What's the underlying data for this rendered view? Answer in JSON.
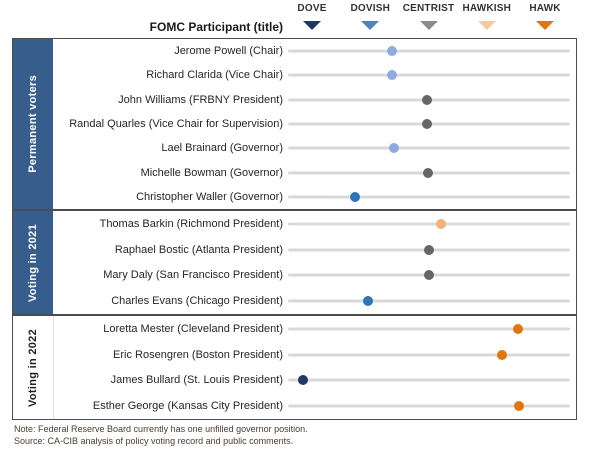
{
  "header": {
    "participant_label": "FOMC Participant (title)",
    "scale": [
      {
        "label": "DOVE",
        "color": "#1F3864"
      },
      {
        "label": "DOVISH",
        "color": "#4F81BD"
      },
      {
        "label": "CENTRIST",
        "color": "#8C8C8C"
      },
      {
        "label": "HAWKISH",
        "color": "#F5C9A2"
      },
      {
        "label": "HAWK",
        "color": "#E2750F"
      }
    ]
  },
  "sections": [
    {
      "label": "Permanent voters",
      "style": "blue",
      "rows": [
        {
          "name": "Jerome Powell (Chair)",
          "value": 2.37,
          "color": "#8FAADC"
        },
        {
          "name": "Richard Clarida (Vice Chair)",
          "value": 2.37,
          "color": "#8FAADC"
        },
        {
          "name": "John Williams (FRBNY President)",
          "value": 2.97,
          "color": "#666666"
        },
        {
          "name": "Randal Quarles (Vice Chair for Supervision)",
          "value": 2.97,
          "color": "#666666"
        },
        {
          "name": "Lael Brainard (Governor)",
          "value": 2.41,
          "color": "#8FAADC"
        },
        {
          "name": "Michelle Bowman (Governor)",
          "value": 2.99,
          "color": "#666666"
        },
        {
          "name": "Christopher Waller (Governor)",
          "value": 1.74,
          "color": "#2E74B5"
        }
      ]
    },
    {
      "label": "Voting in 2021",
      "style": "blue",
      "rows": [
        {
          "name": "Thomas Barkin (Richmond President)",
          "value": 3.21,
          "color": "#F2B279"
        },
        {
          "name": "Raphael Bostic (Atlanta President)",
          "value": 3.01,
          "color": "#666666"
        },
        {
          "name": "Mary Daly (San Francisco President)",
          "value": 3.01,
          "color": "#666666"
        },
        {
          "name": "Charles Evans (Chicago President)",
          "value": 1.96,
          "color": "#2E74B5"
        }
      ]
    },
    {
      "label": "Voting in 2022",
      "style": "white",
      "rows": [
        {
          "name": "Loretta Mester (Cleveland President)",
          "value": 4.54,
          "color": "#E2750F"
        },
        {
          "name": "Eric Rosengren (Boston President)",
          "value": 4.26,
          "color": "#E2750F"
        },
        {
          "name": "James Bullard (St. Louis President)",
          "value": 0.85,
          "color": "#1F3864"
        },
        {
          "name": "Esther George (Kansas City President)",
          "value": 4.55,
          "color": "#E2750F"
        }
      ]
    }
  ],
  "notes": {
    "note": "Note: Federal Reserve Board currently has one unfilled governor position.",
    "source": "Source: CA-CIB analysis of policy voting record and public comments."
  },
  "chart_data": {
    "type": "scatter",
    "title": "FOMC participants on dove-hawk policy spectrum",
    "xlabel": "FOMC Participant (title)",
    "x_axis": {
      "tick_labels": [
        "DOVE",
        "DOVISH",
        "CENTRIST",
        "HAWKISH",
        "HAWK"
      ],
      "tick_values": [
        1,
        2,
        3,
        4,
        5
      ],
      "range": [
        0.5,
        5.5
      ]
    },
    "legend_position": "top",
    "grid": false,
    "groups": [
      {
        "group": "Permanent voters",
        "points": [
          {
            "participant": "Jerome Powell (Chair)",
            "stance": 2.37,
            "color": "#8FAADC"
          },
          {
            "participant": "Richard Clarida (Vice Chair)",
            "stance": 2.37,
            "color": "#8FAADC"
          },
          {
            "participant": "John Williams (FRBNY President)",
            "stance": 2.97,
            "color": "#666666"
          },
          {
            "participant": "Randal Quarles (Vice Chair for Supervision)",
            "stance": 2.97,
            "color": "#666666"
          },
          {
            "participant": "Lael Brainard (Governor)",
            "stance": 2.41,
            "color": "#8FAADC"
          },
          {
            "participant": "Michelle Bowman (Governor)",
            "stance": 2.99,
            "color": "#666666"
          },
          {
            "participant": "Christopher Waller (Governor)",
            "stance": 1.74,
            "color": "#2E74B5"
          }
        ]
      },
      {
        "group": "Voting in 2021",
        "points": [
          {
            "participant": "Thomas Barkin (Richmond President)",
            "stance": 3.21,
            "color": "#F2B279"
          },
          {
            "participant": "Raphael Bostic (Atlanta President)",
            "stance": 3.01,
            "color": "#666666"
          },
          {
            "participant": "Mary Daly (San Francisco President)",
            "stance": 3.01,
            "color": "#666666"
          },
          {
            "participant": "Charles Evans (Chicago President)",
            "stance": 1.96,
            "color": "#2E74B5"
          }
        ]
      },
      {
        "group": "Voting in 2022",
        "points": [
          {
            "participant": "Loretta Mester (Cleveland President)",
            "stance": 4.54,
            "color": "#E2750F"
          },
          {
            "participant": "Eric Rosengren (Boston President)",
            "stance": 4.26,
            "color": "#E2750F"
          },
          {
            "participant": "James Bullard (St. Louis President)",
            "stance": 0.85,
            "color": "#1F3864"
          },
          {
            "participant": "Esther George (Kansas City President)",
            "stance": 4.55,
            "color": "#E2750F"
          }
        ]
      }
    ]
  }
}
